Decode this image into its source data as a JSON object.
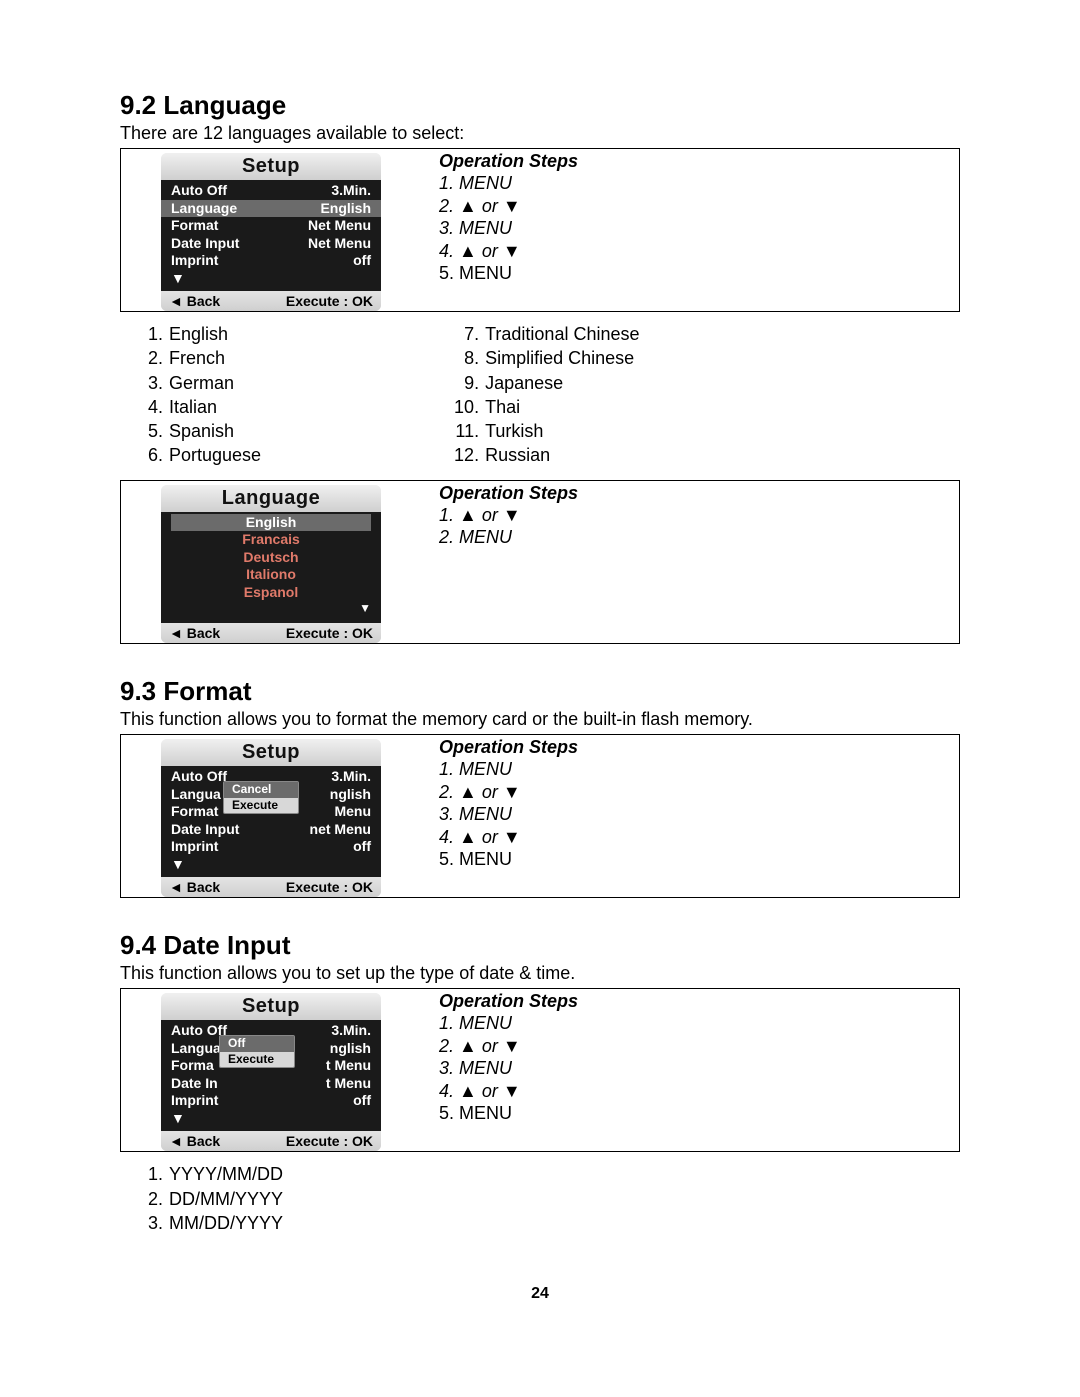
{
  "page_number": "24",
  "colors": {
    "text": "#000000",
    "bg": "#ffffff",
    "device_body_bg": "#1a1a1a",
    "device_header_bg_top": "#f0f0f0",
    "device_header_bg_bot": "#cfcfcf",
    "highlight_bg": "#6b6b6b",
    "lang_accent": "#e07a6a"
  },
  "sections": {
    "s92": {
      "heading": "9.2 Language",
      "desc": "There are 12 languages available to select:",
      "device1": {
        "title": "Setup",
        "rows": [
          {
            "l": "Auto Off",
            "r": "3.Min.",
            "hl": false
          },
          {
            "l": "Language",
            "r": "English",
            "hl": true
          },
          {
            "l": "Format",
            "r": "Net Menu",
            "hl": false
          },
          {
            "l": "Date Input",
            "r": "Net Menu",
            "hl": false
          },
          {
            "l": "Imprint",
            "r": "off",
            "hl": false
          }
        ],
        "arrow": "▼",
        "footer_left": "◄ Back",
        "footer_right": "Execute : OK"
      },
      "ops1": {
        "title": "Operation Steps",
        "steps": [
          {
            "t": "1. MENU",
            "italic": true
          },
          {
            "t": "2. ▲ or ▼",
            "italic": true
          },
          {
            "t": "3. MENU",
            "italic": true
          },
          {
            "t": "4. ▲ or ▼",
            "italic": true
          },
          {
            "t": "5. MENU",
            "italic": false
          }
        ]
      },
      "lang_list_left": [
        {
          "n": "1.",
          "t": "English"
        },
        {
          "n": "2.",
          "t": "French"
        },
        {
          "n": "3.",
          "t": "German"
        },
        {
          "n": "4.",
          "t": "Italian"
        },
        {
          "n": "5.",
          "t": "Spanish"
        },
        {
          "n": "6.",
          "t": "Portuguese"
        }
      ],
      "lang_list_right": [
        {
          "n": "7.",
          "t": "Traditional Chinese"
        },
        {
          "n": "8.",
          "t": "Simplified Chinese"
        },
        {
          "n": "9.",
          "t": "Japanese"
        },
        {
          "n": "10.",
          "t": "Thai"
        },
        {
          "n": "11.",
          "t": "Turkish"
        },
        {
          "n": "12.",
          "t": "Russian"
        }
      ],
      "device2": {
        "title": "Language",
        "items": [
          {
            "t": "English",
            "hl": true
          },
          {
            "t": "Francais",
            "hl": false
          },
          {
            "t": "Deutsch",
            "hl": false
          },
          {
            "t": "Italiono",
            "hl": false
          },
          {
            "t": "Espanol",
            "hl": false
          }
        ],
        "arrow": "▼",
        "footer_left": "◄ Back",
        "footer_right": "Execute : OK"
      },
      "ops2": {
        "title": "Operation Steps",
        "steps": [
          {
            "t": "1. ▲ or ▼",
            "italic": true
          },
          {
            "t": "2. MENU",
            "italic": true
          }
        ]
      }
    },
    "s93": {
      "heading": "9.3  Format",
      "desc": "This function allows you to format the memory card or the built-in flash memory.",
      "device": {
        "title": "Setup",
        "rows": [
          {
            "l": "Auto Off",
            "r": "3.Min.",
            "hl": false
          },
          {
            "l": "Langua",
            "r": "nglish",
            "hl": false
          },
          {
            "l": "Format",
            "r": "Menu",
            "hl": false
          },
          {
            "l": "Date Input",
            "r": "net Menu",
            "hl": false
          },
          {
            "l": "Imprint",
            "r": "off",
            "hl": false
          }
        ],
        "popup": [
          {
            "t": "Cancel",
            "hl": true
          },
          {
            "t": "Execute",
            "hl": false
          }
        ],
        "arrow": "▼",
        "footer_left": "◄ Back",
        "footer_right": "Execute : OK"
      },
      "ops": {
        "title": "Operation Steps",
        "steps": [
          {
            "t": "1. MENU",
            "italic": true
          },
          {
            "t": "2. ▲ or ▼",
            "italic": true
          },
          {
            "t": "3. MENU",
            "italic": true
          },
          {
            "t": "4. ▲ or ▼",
            "italic": true
          },
          {
            "t": "5. MENU",
            "italic": false
          }
        ]
      }
    },
    "s94": {
      "heading": "9.4  Date Input",
      "desc": "This function allows you to set up the type of date & time.",
      "device": {
        "title": "Setup",
        "rows": [
          {
            "l": "Auto Off",
            "r": "3.Min.",
            "hl": false
          },
          {
            "l": "Langua",
            "r": "nglish",
            "hl": false
          },
          {
            "l": "Forma",
            "r": "t Menu",
            "hl": false
          },
          {
            "l": "Date In",
            "r": "t Menu",
            "hl": false
          },
          {
            "l": "Imprint",
            "r": "off",
            "hl": false
          }
        ],
        "popup": [
          {
            "t": "Off",
            "hl": true
          },
          {
            "t": "Execute",
            "hl": false
          }
        ],
        "arrow": "▼",
        "footer_left": "◄ Back",
        "footer_right": "Execute : OK"
      },
      "ops": {
        "title": "Operation Steps",
        "steps": [
          {
            "t": "1. MENU",
            "italic": true
          },
          {
            "t": "2. ▲ or ▼",
            "italic": true
          },
          {
            "t": "3. MENU",
            "italic": true
          },
          {
            "t": "4. ▲ or ▼",
            "italic": true
          },
          {
            "t": "5. MENU",
            "italic": false
          }
        ]
      },
      "formats": [
        {
          "n": "1.",
          "t": "YYYY/MM/DD"
        },
        {
          "n": "2.",
          "t": "DD/MM/YYYY"
        },
        {
          "n": "3.",
          "t": "MM/DD/YYYY"
        }
      ]
    }
  }
}
